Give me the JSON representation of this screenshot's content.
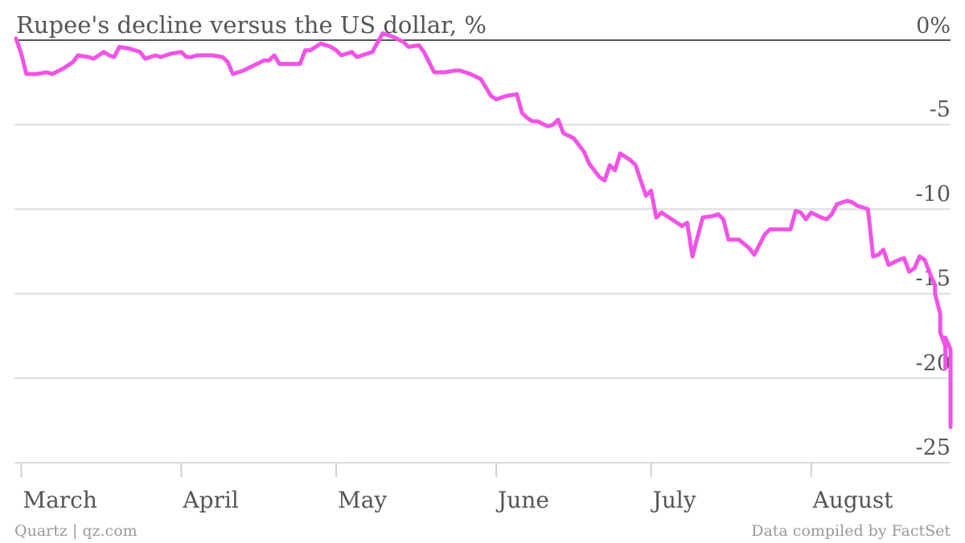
{
  "chart_data": {
    "type": "line",
    "title": "Rupee's decline versus the US dollar, %",
    "xlabel": "",
    "ylabel": "",
    "ylim": [
      -25,
      0
    ],
    "y_ticks": [
      {
        "value": 0,
        "label": "0%"
      },
      {
        "value": -5,
        "label": "-5"
      },
      {
        "value": -10,
        "label": "-10"
      },
      {
        "value": -15,
        "label": "-15"
      },
      {
        "value": -20,
        "label": "-20"
      },
      {
        "value": -25,
        "label": "-25"
      }
    ],
    "x_range": [
      "2013-02-28",
      "2013-08-28"
    ],
    "x_ticks": [
      {
        "date": "2013-03-01",
        "label": "March"
      },
      {
        "date": "2013-04-01",
        "label": "April"
      },
      {
        "date": "2013-05-01",
        "label": "May"
      },
      {
        "date": "2013-06-01",
        "label": "June"
      },
      {
        "date": "2013-07-01",
        "label": "July"
      },
      {
        "date": "2013-08-01",
        "label": "August"
      }
    ],
    "grid": true,
    "legend": "none",
    "series": [
      {
        "color": "#f053e6",
        "points": [
          [
            "2013-02-28",
            0.1
          ],
          [
            "2013-03-01",
            -0.8
          ],
          [
            "2013-03-02",
            -2.0
          ],
          [
            "2013-03-04",
            -2.0
          ],
          [
            "2013-03-06",
            -1.9
          ],
          [
            "2013-03-07",
            -2.0
          ],
          [
            "2013-03-09",
            -1.7
          ],
          [
            "2013-03-11",
            -1.3
          ],
          [
            "2013-03-12",
            -0.9
          ],
          [
            "2013-03-14",
            -1.0
          ],
          [
            "2013-03-15",
            -1.1
          ],
          [
            "2013-03-17",
            -0.7
          ],
          [
            "2013-03-18",
            -0.9
          ],
          [
            "2013-03-19",
            -1.0
          ],
          [
            "2013-03-20",
            -0.4
          ],
          [
            "2013-03-22",
            -0.5
          ],
          [
            "2013-03-24",
            -0.7
          ],
          [
            "2013-03-25",
            -1.1
          ],
          [
            "2013-03-27",
            -0.9
          ],
          [
            "2013-03-28",
            -1.0
          ],
          [
            "2013-03-30",
            -0.8
          ],
          [
            "2013-04-01",
            -0.7
          ],
          [
            "2013-04-02",
            -1.0
          ],
          [
            "2013-04-03",
            -1.0
          ],
          [
            "2013-04-04",
            -0.9
          ],
          [
            "2013-04-06",
            -0.9
          ],
          [
            "2013-04-07",
            -0.9
          ],
          [
            "2013-04-09",
            -1.0
          ],
          [
            "2013-04-10",
            -1.3
          ],
          [
            "2013-04-11",
            -2.0
          ],
          [
            "2013-04-13",
            -1.8
          ],
          [
            "2013-04-15",
            -1.5
          ],
          [
            "2013-04-17",
            -1.2
          ],
          [
            "2013-04-18",
            -1.2
          ],
          [
            "2013-04-19",
            -0.9
          ],
          [
            "2013-04-20",
            -1.4
          ],
          [
            "2013-04-22",
            -1.4
          ],
          [
            "2013-04-24",
            -1.4
          ],
          [
            "2013-04-25",
            -0.6
          ],
          [
            "2013-04-26",
            -0.6
          ],
          [
            "2013-04-28",
            -0.2
          ],
          [
            "2013-04-30",
            -0.4
          ],
          [
            "2013-05-01",
            -0.6
          ],
          [
            "2013-05-02",
            -0.9
          ],
          [
            "2013-05-04",
            -0.7
          ],
          [
            "2013-05-05",
            -1.0
          ],
          [
            "2013-05-07",
            -0.8
          ],
          [
            "2013-05-08",
            -0.7
          ],
          [
            "2013-05-10",
            0.4
          ],
          [
            "2013-05-12",
            0.2
          ],
          [
            "2013-05-14",
            -0.1
          ],
          [
            "2013-05-15",
            -0.4
          ],
          [
            "2013-05-17",
            -0.3
          ],
          [
            "2013-05-18",
            -0.7
          ],
          [
            "2013-05-20",
            -1.9
          ],
          [
            "2013-05-22",
            -1.9
          ],
          [
            "2013-05-24",
            -1.8
          ],
          [
            "2013-05-25",
            -1.8
          ],
          [
            "2013-05-27",
            -2.0
          ],
          [
            "2013-05-29",
            -2.3
          ],
          [
            "2013-05-31",
            -3.3
          ],
          [
            "2013-06-01",
            -3.5
          ],
          [
            "2013-06-03",
            -3.3
          ],
          [
            "2013-06-05",
            -3.2
          ],
          [
            "2013-06-06",
            -4.3
          ],
          [
            "2013-06-07",
            -4.6
          ],
          [
            "2013-06-08",
            -4.8
          ],
          [
            "2013-06-09",
            -4.8
          ],
          [
            "2013-06-11",
            -5.1
          ],
          [
            "2013-06-12",
            -5.0
          ],
          [
            "2013-06-13",
            -4.7
          ],
          [
            "2013-06-14",
            -5.5
          ],
          [
            "2013-06-16",
            -5.8
          ],
          [
            "2013-06-18",
            -6.6
          ],
          [
            "2013-06-19",
            -7.3
          ],
          [
            "2013-06-21",
            -8.1
          ],
          [
            "2013-06-22",
            -8.3
          ],
          [
            "2013-06-23",
            -7.4
          ],
          [
            "2013-06-24",
            -7.7
          ],
          [
            "2013-06-25",
            -6.7
          ],
          [
            "2013-06-27",
            -7.1
          ],
          [
            "2013-06-28",
            -7.4
          ],
          [
            "2013-06-30",
            -9.2
          ],
          [
            "2013-07-01",
            -8.9
          ],
          [
            "2013-07-02",
            -10.5
          ],
          [
            "2013-07-03",
            -10.2
          ],
          [
            "2013-07-04",
            -10.4
          ],
          [
            "2013-07-06",
            -10.8
          ],
          [
            "2013-07-07",
            -11.0
          ],
          [
            "2013-07-08",
            -10.8
          ],
          [
            "2013-07-09",
            -12.8
          ],
          [
            "2013-07-11",
            -10.5
          ],
          [
            "2013-07-13",
            -10.4
          ],
          [
            "2013-07-14",
            -10.3
          ],
          [
            "2013-07-15",
            -10.6
          ],
          [
            "2013-07-16",
            -11.8
          ],
          [
            "2013-07-18",
            -11.8
          ],
          [
            "2013-07-20",
            -12.3
          ],
          [
            "2013-07-21",
            -12.7
          ],
          [
            "2013-07-23",
            -11.5
          ],
          [
            "2013-07-24",
            -11.2
          ],
          [
            "2013-07-26",
            -11.2
          ],
          [
            "2013-07-28",
            -11.2
          ],
          [
            "2013-07-29",
            -10.1
          ],
          [
            "2013-07-30",
            -10.2
          ],
          [
            "2013-07-31",
            -10.6
          ],
          [
            "2013-08-01",
            -10.2
          ],
          [
            "2013-08-03",
            -10.5
          ],
          [
            "2013-08-04",
            -10.6
          ],
          [
            "2013-08-05",
            -10.3
          ],
          [
            "2013-08-06",
            -9.7
          ],
          [
            "2013-08-08",
            -9.5
          ],
          [
            "2013-08-09",
            -9.6
          ],
          [
            "2013-08-10",
            -9.8
          ],
          [
            "2013-08-12",
            -10.0
          ],
          [
            "2013-08-13",
            -12.8
          ],
          [
            "2013-08-14",
            -12.7
          ],
          [
            "2013-08-15",
            -12.4
          ],
          [
            "2013-08-16",
            -13.3
          ],
          [
            "2013-08-18",
            -13.0
          ],
          [
            "2013-08-19",
            -12.9
          ],
          [
            "2013-08-20",
            -13.7
          ],
          [
            "2013-08-21",
            -13.5
          ],
          [
            "2013-08-22",
            -12.8
          ],
          [
            "2013-08-23",
            -13.0
          ],
          [
            "2013-08-24",
            -13.8
          ],
          [
            "2013-08-25",
            -14.5
          ],
          [
            "2013-08-25",
            -15.0
          ],
          [
            "2013-08-26",
            -16.2
          ],
          [
            "2013-08-26",
            -17.3
          ],
          [
            "2013-08-27",
            -18.1
          ],
          [
            "2013-08-27",
            -19.4
          ],
          [
            "2013-08-27",
            -17.6
          ],
          [
            "2013-08-28",
            -18.3
          ],
          [
            "2013-08-28",
            -19.0
          ],
          [
            "2013-08-28",
            -22.9
          ]
        ]
      }
    ],
    "source_left": "Quartz | qz.com",
    "source_right": "Data compiled by FactSet"
  }
}
